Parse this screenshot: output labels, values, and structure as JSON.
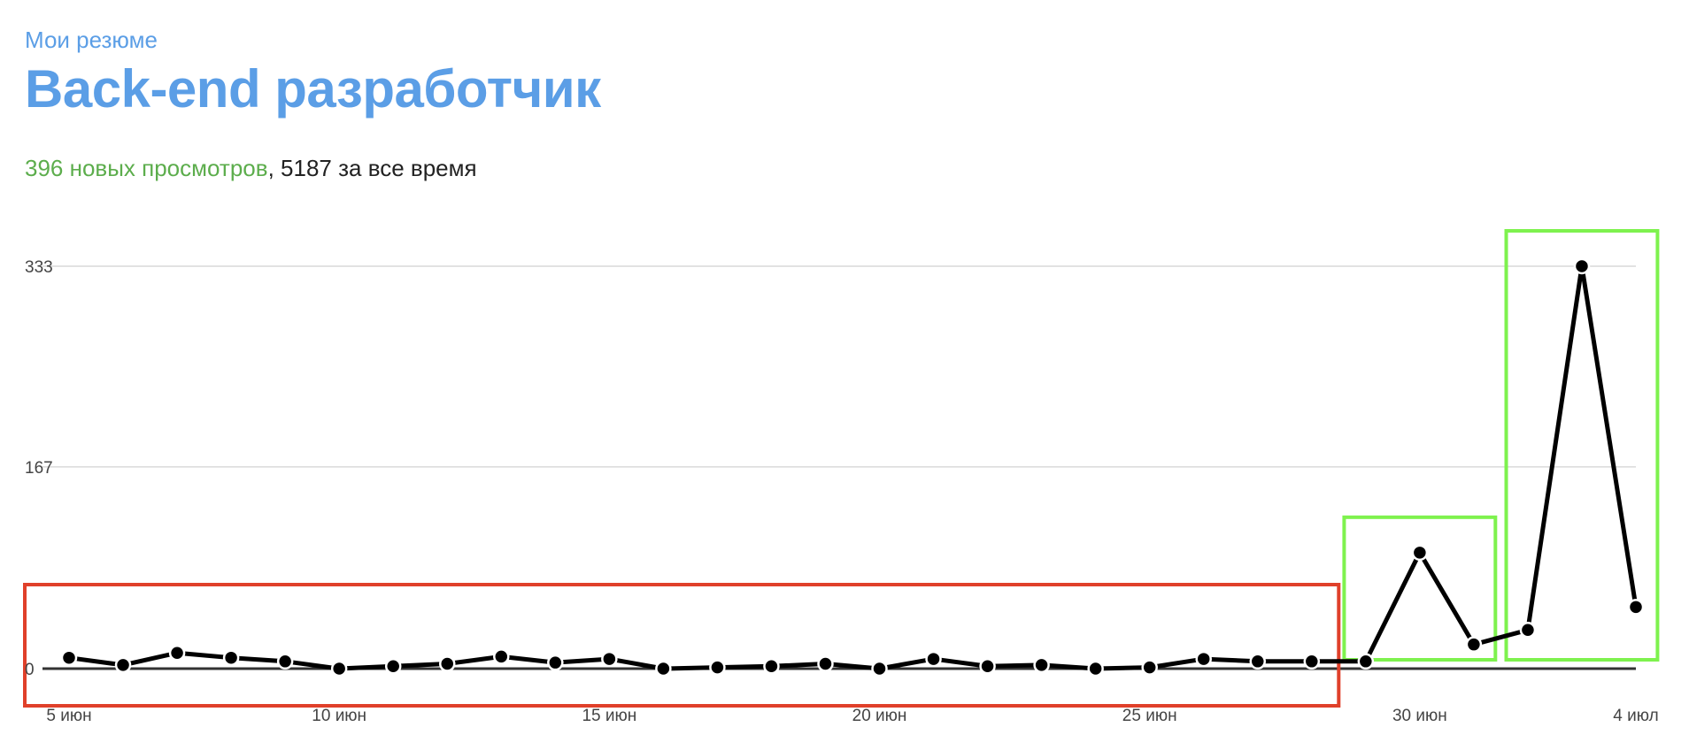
{
  "breadcrumb": "Мои резюме",
  "title": "Back-end разработчик",
  "stats": {
    "new_views": "396 новых просмотров",
    "separator": ",",
    "total": " 5187 за все время"
  },
  "colors": {
    "accent": "#5b9ee6",
    "new_views": "#5cad4c",
    "line": "#000000",
    "highlight_red": "#e0402a",
    "highlight_green": "#7ef24e"
  },
  "chart_data": {
    "type": "line",
    "x": [
      "5 июн",
      "6 июн",
      "7 июн",
      "8 июн",
      "9 июн",
      "10 июн",
      "11 июн",
      "12 июн",
      "13 июн",
      "14 июн",
      "15 июн",
      "16 июн",
      "17 июн",
      "18 июн",
      "19 июн",
      "20 июн",
      "21 июн",
      "22 июн",
      "23 июн",
      "24 июн",
      "25 июн",
      "26 июн",
      "27 июн",
      "28 июн",
      "29 июн",
      "30 июн",
      "1 июл",
      "2 июл",
      "3 июл",
      "4 июл"
    ],
    "values": [
      9,
      3,
      13,
      9,
      6,
      0,
      2,
      4,
      10,
      5,
      8,
      0,
      1,
      2,
      4,
      0,
      8,
      2,
      3,
      0,
      1,
      8,
      6,
      6,
      6,
      96,
      20,
      32,
      333,
      51
    ],
    "xtick_labels": [
      "5 июн",
      "10 июн",
      "15 июн",
      "20 июн",
      "25 июн",
      "30 июн",
      "4 июл"
    ],
    "xtick_indices": [
      0,
      5,
      10,
      15,
      20,
      25,
      29
    ],
    "yticks": [
      0,
      167,
      333
    ],
    "ylim": [
      0,
      333
    ],
    "grid": true,
    "highlights": [
      {
        "color": "red",
        "from_index": 0,
        "to_index": 23
      },
      {
        "color": "green",
        "from_index": 24,
        "to_index": 26
      },
      {
        "color": "green",
        "from_index": 27,
        "to_index": 29
      }
    ]
  }
}
